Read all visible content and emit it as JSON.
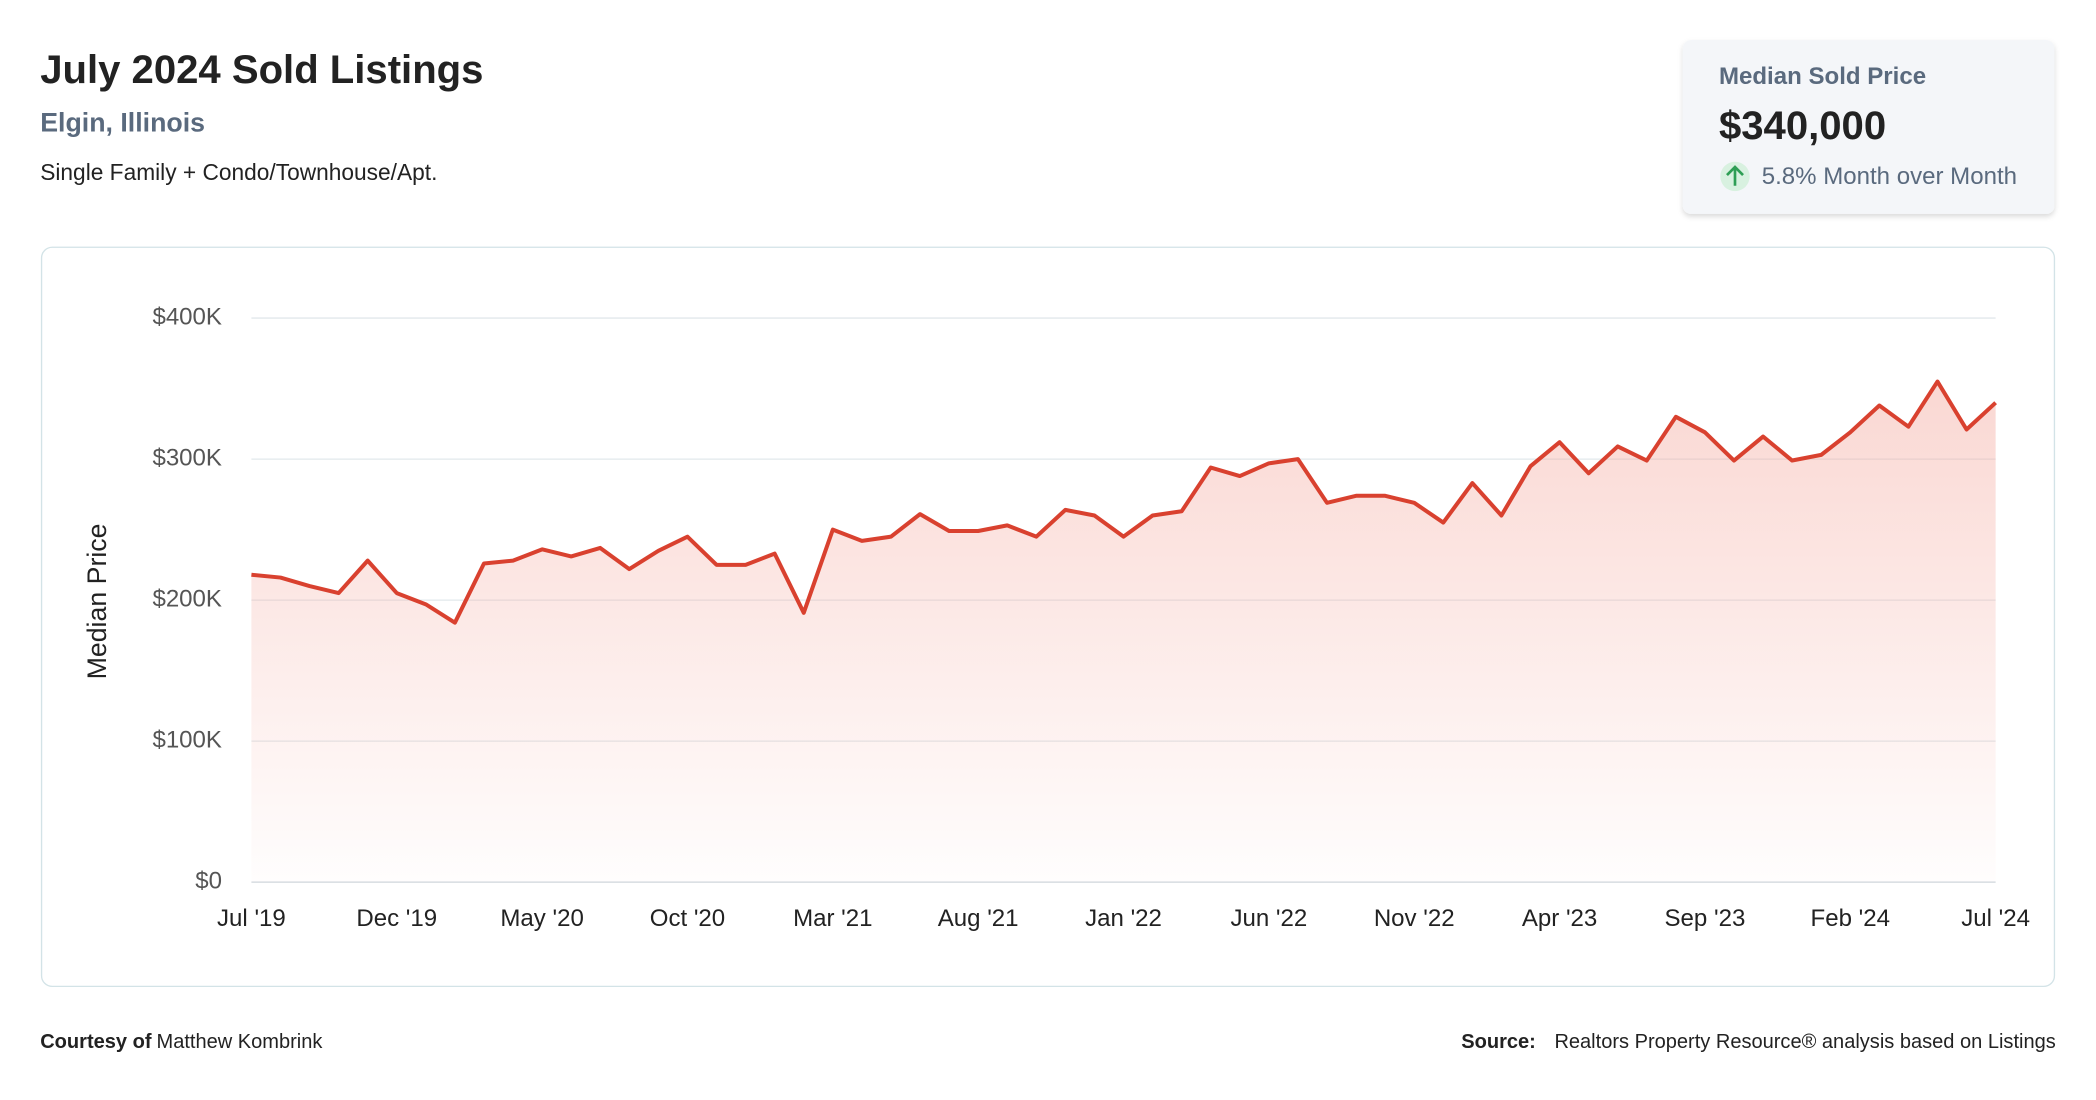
{
  "header": {
    "title": "July 2024 Sold Listings",
    "location": "Elgin, Illinois",
    "property_types": "Single Family + Condo/Townhouse/Apt."
  },
  "kpi": {
    "label": "Median Sold Price",
    "value": "$340,000",
    "change": "5.8% Month over Month"
  },
  "chart_data": {
    "type": "area",
    "y_label": "Median Price",
    "categories": [
      "Jul '19",
      null,
      null,
      null,
      null,
      "Dec '19",
      null,
      null,
      null,
      null,
      "May '20",
      null,
      null,
      null,
      null,
      "Oct '20",
      null,
      null,
      null,
      null,
      "Mar '21",
      null,
      null,
      null,
      null,
      "Aug '21",
      null,
      null,
      null,
      null,
      "Jan '22",
      null,
      null,
      null,
      null,
      "Jun '22",
      null,
      null,
      null,
      null,
      "Nov '22",
      null,
      null,
      null,
      null,
      "Apr '23",
      null,
      null,
      null,
      null,
      "Sep '23",
      null,
      null,
      null,
      null,
      "Feb '24",
      null,
      null,
      null,
      null,
      "Jul '24"
    ],
    "values": [
      218000,
      216000,
      210000,
      205000,
      228000,
      205000,
      197000,
      184000,
      226000,
      228000,
      236000,
      231000,
      237000,
      222000,
      235000,
      245000,
      225000,
      225000,
      233000,
      191000,
      250000,
      242000,
      245000,
      261000,
      249000,
      249000,
      253000,
      245000,
      264000,
      260000,
      245000,
      260000,
      263000,
      294000,
      288000,
      297000,
      300000,
      269000,
      274000,
      274000,
      269000,
      255000,
      283000,
      260000,
      295000,
      312000,
      290000,
      309000,
      299000,
      330000,
      319000,
      299000,
      316000,
      299000,
      303000,
      319000,
      338000,
      323000,
      355000,
      321000,
      340000
    ],
    "color": "#d9412f",
    "ylim": [
      0,
      400000
    ],
    "yticks": [
      {
        "value": 0,
        "label": "$0"
      },
      {
        "value": 100000,
        "label": "$100K"
      },
      {
        "value": 200000,
        "label": "$200K"
      },
      {
        "value": 300000,
        "label": "$300K"
      },
      {
        "value": 400000,
        "label": "$400K"
      }
    ],
    "grid": true
  },
  "footer": {
    "courtesy_label": "Courtesy of",
    "courtesy_name": "Matthew Kombrink",
    "source_label": "Source:",
    "source_text": "Realtors Property Resource® analysis based on Listings"
  }
}
